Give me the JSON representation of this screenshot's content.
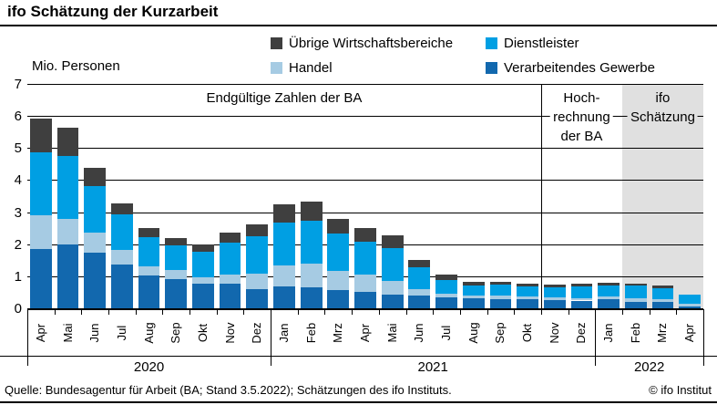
{
  "header": {
    "title": "ifo Schätzung der Kurzarbeit"
  },
  "legend": [
    {
      "label": "Übrige Wirtschaftsbereiche",
      "color": "#3f3f3f"
    },
    {
      "label": "Dienstleister",
      "color": "#009fe3"
    },
    {
      "label": "Handel",
      "color": "#a6cbe3"
    },
    {
      "label": "Verarbeitendes Gewerbe",
      "color": "#1268ae"
    }
  ],
  "chart_data": {
    "type": "bar",
    "stacked": true,
    "title": "ifo Schätzung der Kurzarbeit",
    "ylabel": "Mio. Personen",
    "ylim": [
      0,
      7
    ],
    "yticks": [
      0,
      1,
      2,
      3,
      4,
      5,
      6,
      7
    ],
    "grid": true,
    "categories": [
      "Apr",
      "Mai",
      "Jun",
      "Jul",
      "Aug",
      "Sep",
      "Okt",
      "Nov",
      "Dez",
      "Jan",
      "Feb",
      "Mrz",
      "Apr",
      "Mai",
      "Jun",
      "Jul",
      "Aug",
      "Sep",
      "Okt",
      "Nov",
      "Dez",
      "Jan",
      "Feb",
      "Mrz",
      "Apr"
    ],
    "years": [
      {
        "label": "2020",
        "count": 9
      },
      {
        "label": "2021",
        "count": 12
      },
      {
        "label": "2022",
        "count": 4
      }
    ],
    "series": [
      {
        "name": "Verarbeitendes Gewerbe",
        "color": "#1268ae",
        "values": [
          1.88,
          2.02,
          1.76,
          1.4,
          1.04,
          0.95,
          0.81,
          0.81,
          0.63,
          0.72,
          0.69,
          0.6,
          0.53,
          0.45,
          0.42,
          0.37,
          0.33,
          0.31,
          0.3,
          0.29,
          0.27,
          0.3,
          0.24,
          0.22,
          0.09
        ]
      },
      {
        "name": "Handel",
        "color": "#a6cbe3",
        "values": [
          1.05,
          0.8,
          0.62,
          0.45,
          0.31,
          0.26,
          0.19,
          0.26,
          0.49,
          0.65,
          0.74,
          0.59,
          0.54,
          0.43,
          0.2,
          0.12,
          0.09,
          0.12,
          0.1,
          0.08,
          0.08,
          0.09,
          0.09,
          0.09,
          0.09
        ]
      },
      {
        "name": "Dienstleister",
        "color": "#009fe3",
        "values": [
          1.97,
          1.95,
          1.46,
          1.1,
          0.91,
          0.79,
          0.78,
          1.0,
          1.16,
          1.34,
          1.32,
          1.16,
          1.04,
          1.04,
          0.7,
          0.43,
          0.33,
          0.33,
          0.31,
          0.31,
          0.36,
          0.36,
          0.4,
          0.35,
          0.28
        ]
      },
      {
        "name": "Übrige Wirtschaftsbereiche",
        "color": "#3f3f3f",
        "values": [
          1.05,
          0.9,
          0.57,
          0.35,
          0.27,
          0.23,
          0.24,
          0.31,
          0.38,
          0.56,
          0.6,
          0.46,
          0.43,
          0.38,
          0.22,
          0.17,
          0.09,
          0.09,
          0.09,
          0.1,
          0.09,
          0.08,
          0.08,
          0.09,
          0.0
        ]
      }
    ],
    "regions": [
      {
        "label_lines": [
          "Endgültige Zahlen der BA"
        ],
        "start": 0,
        "end": 19,
        "shaded": false,
        "divider_at_start": false
      },
      {
        "label_lines": [
          "Hoch-",
          "rechnung",
          "der BA"
        ],
        "start": 19,
        "end": 22,
        "shaded": false,
        "divider_at_start": true
      },
      {
        "label_lines": [
          "ifo",
          "Schätzung"
        ],
        "start": 22,
        "end": 25,
        "shaded": true,
        "divider_at_start": false
      }
    ],
    "shaded_region_color": "#e0e0e0",
    "legend_position": "top"
  },
  "footer": {
    "source": "Quelle: Bundesagentur für Arbeit (BA; Stand 3.5.2022); Schätzungen des ifo Instituts.",
    "copyright": "© ifo Institut"
  }
}
